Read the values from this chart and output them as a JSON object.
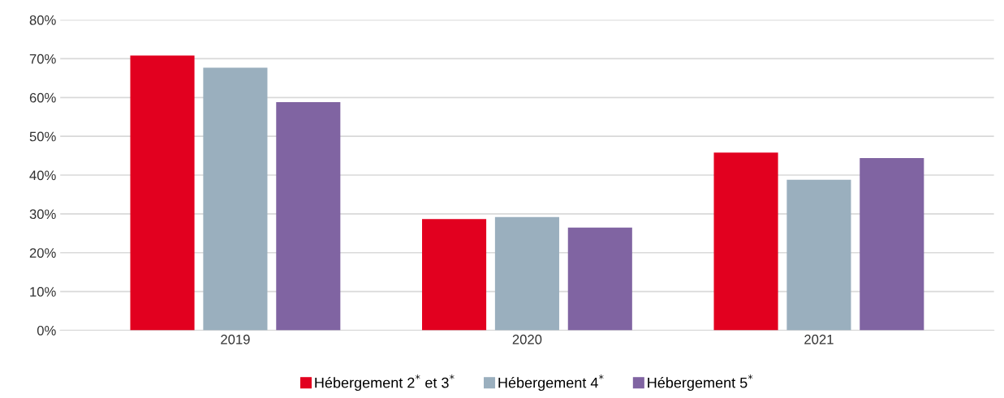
{
  "chart_data": {
    "type": "bar",
    "categories": [
      "2019",
      "2020",
      "2021"
    ],
    "series": [
      {
        "name": "Hébergement 2$^{*}$ et 3$^{*}$",
        "color": "#e2001f",
        "values": [
          70.8,
          28.7,
          45.8
        ]
      },
      {
        "name": "Hébergement 4$^{*}$",
        "color": "#9aafbe",
        "values": [
          67.7,
          29.2,
          38.8
        ]
      },
      {
        "name": "Hébergement 5$^{*}$",
        "color": "#8064a2",
        "values": [
          58.8,
          26.5,
          44.4
        ]
      }
    ],
    "ylim": [
      0,
      80
    ],
    "yticks": [
      {
        "value": 0,
        "label": "0%"
      },
      {
        "value": 10,
        "label": "10%"
      },
      {
        "value": 20,
        "label": "20%"
      },
      {
        "value": 30,
        "label": "30%"
      },
      {
        "value": 40,
        "label": "40%"
      },
      {
        "value": 50,
        "label": "50%"
      },
      {
        "value": 60,
        "label": "60%"
      },
      {
        "value": 70,
        "label": "70%"
      },
      {
        "value": 80,
        "label": "80%"
      }
    ],
    "grid": "y",
    "legend": "bottom"
  }
}
